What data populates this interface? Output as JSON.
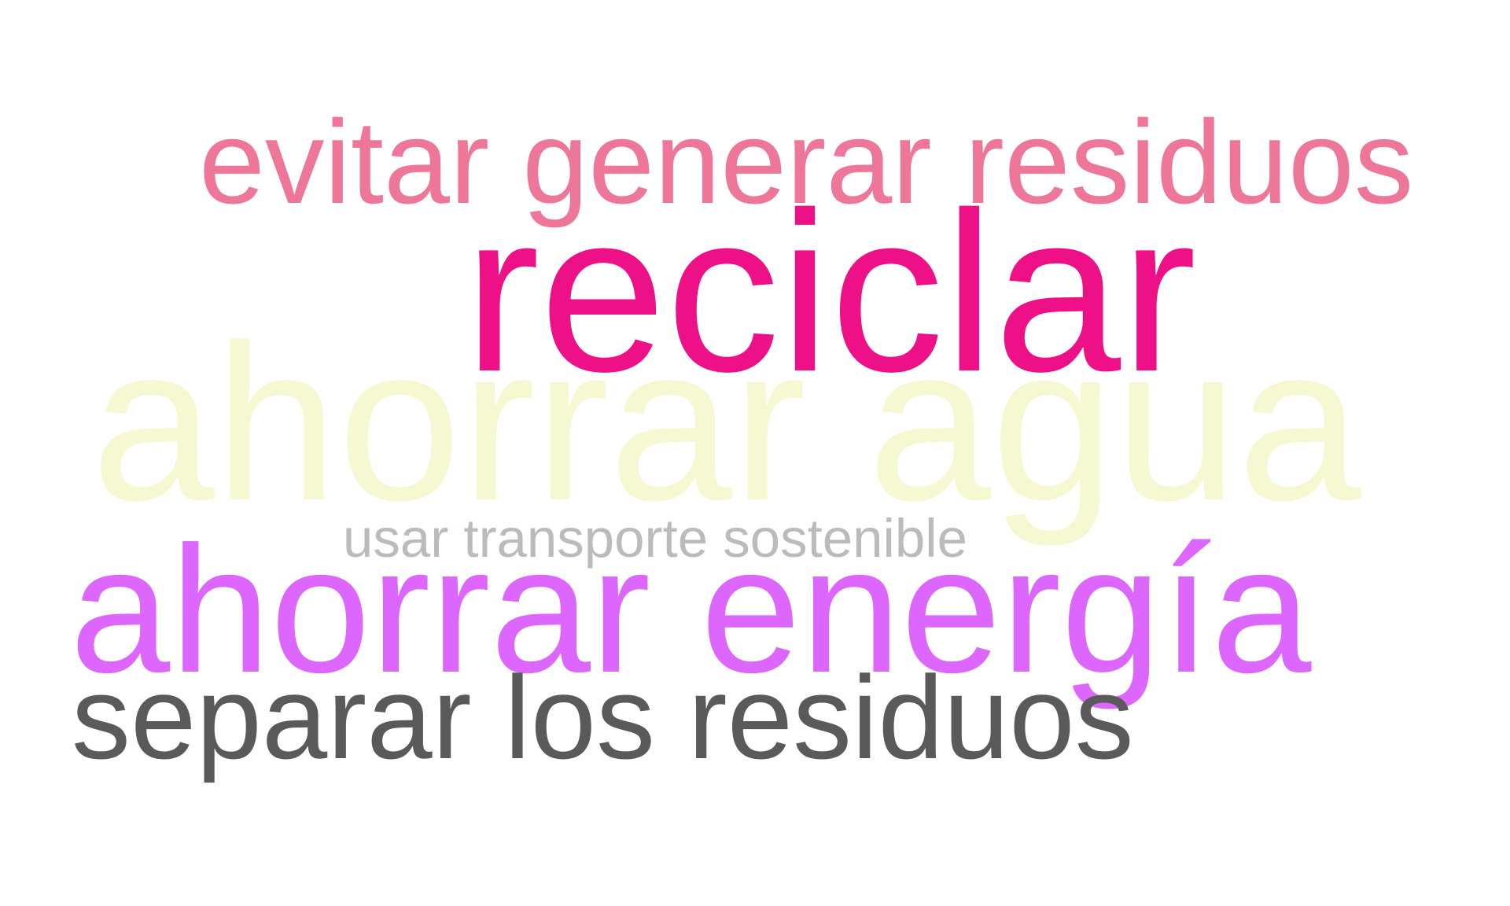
{
  "word_cloud": {
    "background": "#ffffff",
    "words": [
      {
        "id": "ahorrar-agua",
        "text": "ahorrar agua",
        "color": "#f6f8d2",
        "weight": 1.0
      },
      {
        "id": "reciclar",
        "text": "reciclar",
        "color": "#ee1086",
        "weight": 1.0
      },
      {
        "id": "ahorrar-energia",
        "text": "ahorrar energía",
        "color": "#dd66ff",
        "weight": 0.8
      },
      {
        "id": "evitar-generar-residuos",
        "text": "evitar generar residuos",
        "color": "#ee7799",
        "weight": 0.55
      },
      {
        "id": "separar-los-residuos",
        "text": "separar los residuos",
        "color": "#5a5a5a",
        "weight": 0.55
      },
      {
        "id": "usar-transporte-sostenible",
        "text": "usar transporte sostenible",
        "color": "#bbbbbb",
        "weight": 0.25
      }
    ]
  }
}
